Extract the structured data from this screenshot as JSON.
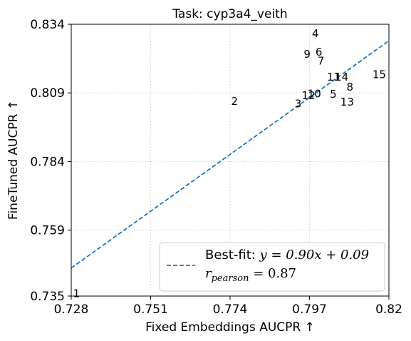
{
  "chart_data": {
    "type": "scatter",
    "title": "Task: cyp3a4_veith",
    "xlabel": "Fixed Embeddings AUCPR ↑",
    "ylabel": "FineTuned AUCPR ↑",
    "xlim": [
      0.728,
      0.82
    ],
    "ylim": [
      0.735,
      0.834
    ],
    "xticks": [
      0.728,
      0.751,
      0.774,
      0.797,
      0.82
    ],
    "xtick_labels": [
      "0.728",
      "0.751",
      "0.774",
      "0.797",
      "0.82"
    ],
    "yticks": [
      0.735,
      0.759,
      0.784,
      0.809,
      0.834
    ],
    "ytick_labels": [
      "0.735",
      "0.759",
      "0.784",
      "0.809",
      "0.834"
    ],
    "grid": true,
    "points": [
      {
        "label": "1",
        "x": 0.7295,
        "y": 0.7358
      },
      {
        "label": "2",
        "x": 0.7753,
        "y": 0.8058
      },
      {
        "label": "3",
        "x": 0.7937,
        "y": 0.8049
      },
      {
        "label": "4",
        "x": 0.7987,
        "y": 0.8305
      },
      {
        "label": "5",
        "x": 0.8039,
        "y": 0.8084
      },
      {
        "label": "6",
        "x": 0.7997,
        "y": 0.8238
      },
      {
        "label": "7",
        "x": 0.8003,
        "y": 0.8205
      },
      {
        "label": "8",
        "x": 0.8087,
        "y": 0.811
      },
      {
        "label": "9",
        "x": 0.7963,
        "y": 0.8229
      },
      {
        "label": "10",
        "x": 0.7984,
        "y": 0.8085
      },
      {
        "label": "11",
        "x": 0.804,
        "y": 0.8146
      },
      {
        "label": "12",
        "x": 0.7967,
        "y": 0.8079
      },
      {
        "label": "13",
        "x": 0.8079,
        "y": 0.8055
      },
      {
        "label": "14",
        "x": 0.8063,
        "y": 0.8146
      },
      {
        "label": "15",
        "x": 0.8172,
        "y": 0.8155
      }
    ],
    "best_fit": {
      "slope": 0.9,
      "intercept": 0.09,
      "color": "#1f77b4",
      "style": "dashed"
    },
    "legend": {
      "placement": "bottom-right",
      "line1_prefix": "Best-fit: ",
      "line1_eq": "y = 0.90x + 0.09",
      "line2_symbol": "r",
      "line2_sub": "pearson",
      "line2_rest": " = 0.87"
    }
  }
}
